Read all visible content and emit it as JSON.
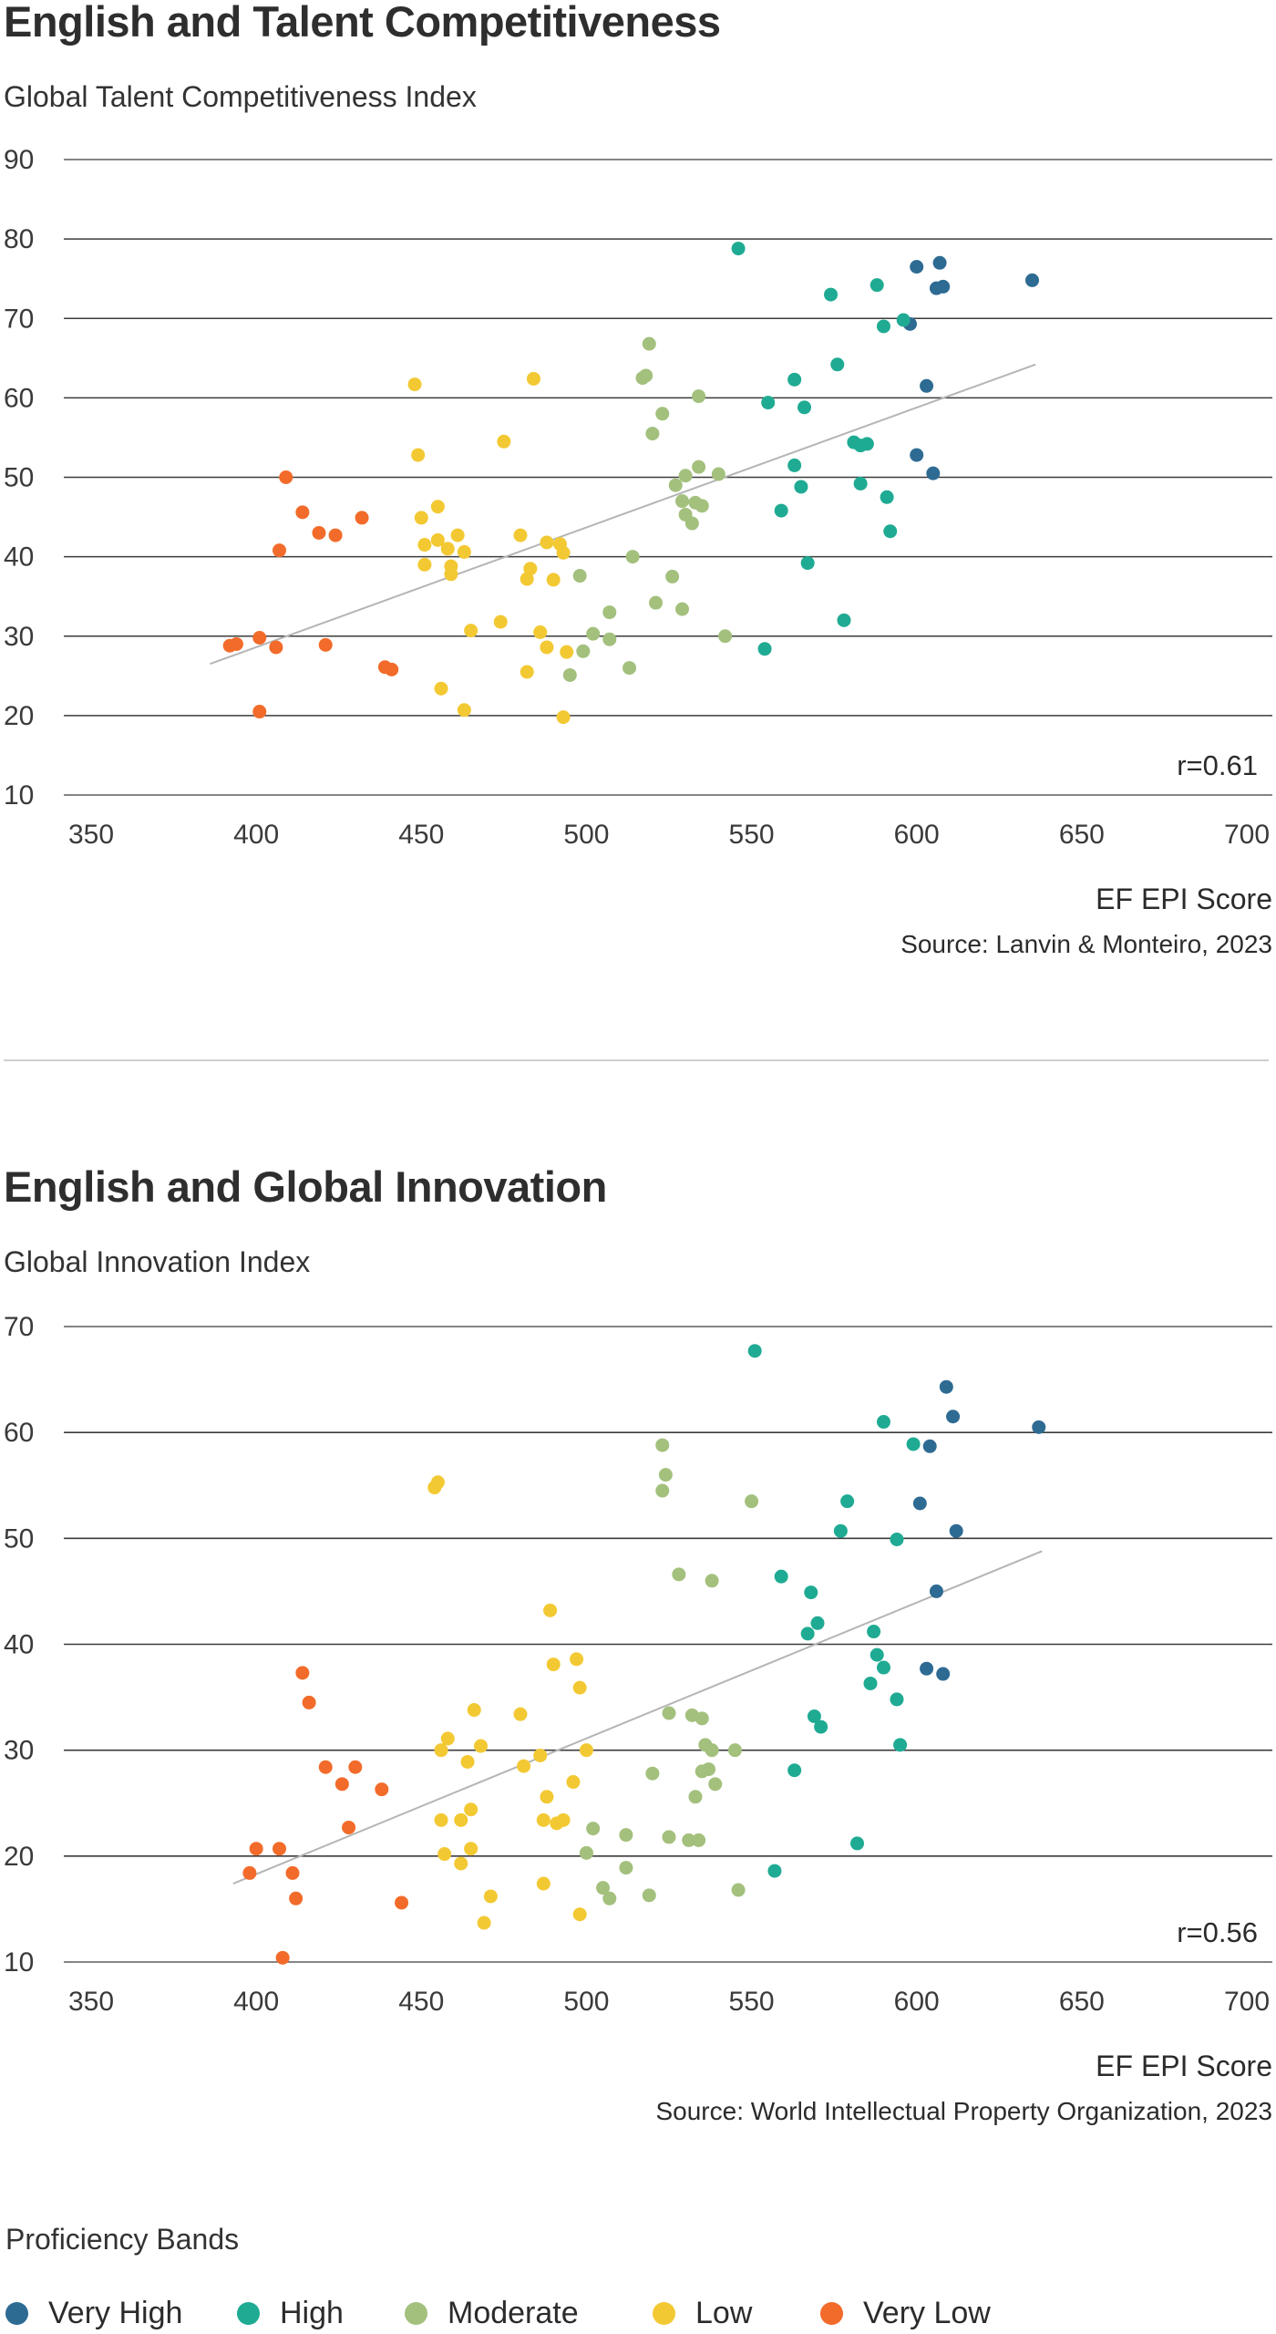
{
  "colors": {
    "Very High": "#2e6b93",
    "High": "#1fab93",
    "Moderate": "#a3c07d",
    "Low": "#f3c933",
    "Very Low": "#f26b2a",
    "grid": "#3c3c3c",
    "trend": "#b5b5b5"
  },
  "legend": {
    "title": "Proficiency Bands",
    "items": [
      {
        "label": "Very High",
        "color": "#2e6b93"
      },
      {
        "label": "High",
        "color": "#1fab93"
      },
      {
        "label": "Moderate",
        "color": "#a3c07d"
      },
      {
        "label": "Low",
        "color": "#f3c933"
      },
      {
        "label": "Very Low",
        "color": "#f26b2a"
      }
    ]
  },
  "chart_data": [
    {
      "type": "scatter",
      "title": "English and Talent Competitiveness",
      "ylabel": "Global Talent Competitiveness Index",
      "xlabel": "EF EPI Score",
      "source": "Source: Lanvin & Monteiro, 2023",
      "annotation": "r=0.61",
      "xlim": [
        350,
        700
      ],
      "ylim": [
        10,
        90
      ],
      "xticks": [
        350,
        400,
        450,
        500,
        550,
        600,
        650,
        700
      ],
      "yticks": [
        10,
        20,
        30,
        40,
        50,
        60,
        70,
        80,
        90
      ],
      "trendline": [
        [
          386,
          26.5
        ],
        [
          636,
          64.2
        ]
      ],
      "series": [
        {
          "name": "Very High",
          "points": [
            [
              600,
              76.5
            ],
            [
              607,
              77
            ],
            [
              606,
              73.8
            ],
            [
              608,
              74
            ],
            [
              598,
              69.3
            ],
            [
              635,
              74.8
            ],
            [
              603,
              61.5
            ],
            [
              600,
              52.8
            ],
            [
              605,
              50.5
            ]
          ]
        },
        {
          "name": "High",
          "points": [
            [
              546,
              78.8
            ],
            [
              574,
              73
            ],
            [
              588,
              74.2
            ],
            [
              596,
              69.8
            ],
            [
              590,
              69
            ],
            [
              576,
              64.2
            ],
            [
              563,
              62.3
            ],
            [
              555,
              59.4
            ],
            [
              566,
              58.8
            ],
            [
              581,
              54.4
            ],
            [
              583,
              54
            ],
            [
              585,
              54.2
            ],
            [
              563,
              51.5
            ],
            [
              565,
              48.8
            ],
            [
              583,
              49.2
            ],
            [
              591,
              47.5
            ],
            [
              559,
              45.8
            ],
            [
              592,
              43.2
            ],
            [
              567,
              39.2
            ],
            [
              578,
              32
            ],
            [
              554,
              28.4
            ]
          ]
        },
        {
          "name": "Moderate",
          "points": [
            [
              519,
              66.8
            ],
            [
              518,
              62.8
            ],
            [
              517,
              62.5
            ],
            [
              534,
              60.2
            ],
            [
              523,
              58
            ],
            [
              520,
              55.5
            ],
            [
              534,
              51.3
            ],
            [
              530,
              50.2
            ],
            [
              540,
              50.4
            ],
            [
              527,
              49
            ],
            [
              529,
              47
            ],
            [
              533,
              46.8
            ],
            [
              535,
              46.4
            ],
            [
              530,
              45.3
            ],
            [
              532,
              44.2
            ],
            [
              514,
              40
            ],
            [
              498,
              37.6
            ],
            [
              526,
              37.5
            ],
            [
              521,
              34.2
            ],
            [
              529,
              33.4
            ],
            [
              507,
              33
            ],
            [
              502,
              30.3
            ],
            [
              507,
              29.6
            ],
            [
              542,
              30
            ],
            [
              499,
              28.1
            ],
            [
              513,
              26
            ],
            [
              495,
              25.1
            ]
          ]
        },
        {
          "name": "Low",
          "points": [
            [
              448,
              61.7
            ],
            [
              484,
              62.4
            ],
            [
              449,
              52.8
            ],
            [
              475,
              54.5
            ],
            [
              450,
              44.9
            ],
            [
              455,
              46.3
            ],
            [
              455,
              42.1
            ],
            [
              461,
              42.7
            ],
            [
              451,
              41.5
            ],
            [
              458,
              41
            ],
            [
              463,
              40.6
            ],
            [
              459,
              38.8
            ],
            [
              451,
              39
            ],
            [
              459,
              37.8
            ],
            [
              480,
              42.7
            ],
            [
              483,
              38.5
            ],
            [
              482,
              37.2
            ],
            [
              488,
              41.8
            ],
            [
              492,
              41.6
            ],
            [
              493,
              40.5
            ],
            [
              490,
              37.1
            ],
            [
              474,
              31.8
            ],
            [
              465,
              30.7
            ],
            [
              486,
              30.5
            ],
            [
              488,
              28.6
            ],
            [
              494,
              28
            ],
            [
              456,
              23.4
            ],
            [
              482,
              25.5
            ],
            [
              463,
              20.7
            ],
            [
              493,
              19.8
            ]
          ]
        },
        {
          "name": "Very Low",
          "points": [
            [
              409,
              50
            ],
            [
              414,
              45.6
            ],
            [
              432,
              44.9
            ],
            [
              419,
              43
            ],
            [
              424,
              42.7
            ],
            [
              407,
              40.8
            ],
            [
              392,
              28.8
            ],
            [
              394,
              29
            ],
            [
              401,
              29.8
            ],
            [
              406,
              28.6
            ],
            [
              421,
              28.9
            ],
            [
              439,
              26.1
            ],
            [
              441,
              25.8
            ],
            [
              401,
              20.5
            ]
          ]
        }
      ]
    },
    {
      "type": "scatter",
      "title": "English and Global Innovation",
      "ylabel": "Global Innovation Index",
      "xlabel": "EF EPI Score",
      "source": "Source: World Intellectual Property Organization, 2023",
      "annotation": "r=0.56",
      "xlim": [
        350,
        700
      ],
      "ylim": [
        10,
        70
      ],
      "xticks": [
        350,
        400,
        450,
        500,
        550,
        600,
        650,
        700
      ],
      "yticks": [
        10,
        20,
        30,
        40,
        50,
        60,
        70
      ],
      "trendline": [
        [
          393,
          17.4
        ],
        [
          638,
          48.8
        ]
      ],
      "series": [
        {
          "name": "Very High",
          "points": [
            [
              609,
              64.3
            ],
            [
              611,
              61.5
            ],
            [
              604,
              58.7
            ],
            [
              637,
              60.5
            ],
            [
              601,
              53.3
            ],
            [
              612,
              50.7
            ],
            [
              606,
              45
            ],
            [
              603,
              37.7
            ],
            [
              608,
              37.2
            ]
          ]
        },
        {
          "name": "High",
          "points": [
            [
              551,
              67.7
            ],
            [
              590,
              61
            ],
            [
              599,
              58.9
            ],
            [
              579,
              53.5
            ],
            [
              577,
              50.7
            ],
            [
              594,
              49.9
            ],
            [
              559,
              46.4
            ],
            [
              568,
              44.9
            ],
            [
              570,
              42
            ],
            [
              567,
              41
            ],
            [
              587,
              41.2
            ],
            [
              588,
              39
            ],
            [
              590,
              37.8
            ],
            [
              586,
              36.3
            ],
            [
              594,
              34.8
            ],
            [
              569,
              33.2
            ],
            [
              571,
              32.2
            ],
            [
              595,
              30.5
            ],
            [
              563,
              28.1
            ],
            [
              582,
              21.2
            ],
            [
              557,
              18.6
            ]
          ]
        },
        {
          "name": "Moderate",
          "points": [
            [
              523,
              58.8
            ],
            [
              524,
              56
            ],
            [
              523,
              54.5
            ],
            [
              550,
              53.5
            ],
            [
              528,
              46.6
            ],
            [
              538,
              46
            ],
            [
              525,
              33.5
            ],
            [
              532,
              33.3
            ],
            [
              535,
              33
            ],
            [
              536,
              30.5
            ],
            [
              538,
              30
            ],
            [
              545,
              30
            ],
            [
              535,
              28
            ],
            [
              537,
              28.2
            ],
            [
              520,
              27.8
            ],
            [
              539,
              26.8
            ],
            [
              533,
              25.6
            ],
            [
              525,
              21.8
            ],
            [
              531,
              21.5
            ],
            [
              534,
              21.5
            ],
            [
              502,
              22.6
            ],
            [
              512,
              22
            ],
            [
              500,
              20.3
            ],
            [
              512,
              18.9
            ],
            [
              505,
              17
            ],
            [
              546,
              16.8
            ],
            [
              507,
              16
            ],
            [
              519,
              16.3
            ]
          ]
        },
        {
          "name": "Low",
          "points": [
            [
              454,
              54.8
            ],
            [
              455,
              55.3
            ],
            [
              489,
              43.2
            ],
            [
              490,
              38.1
            ],
            [
              497,
              38.6
            ],
            [
              498,
              35.9
            ],
            [
              466,
              33.8
            ],
            [
              480,
              33.4
            ],
            [
              458,
              31.1
            ],
            [
              468,
              30.4
            ],
            [
              456,
              30
            ],
            [
              464,
              28.9
            ],
            [
              486,
              29.5
            ],
            [
              481,
              28.5
            ],
            [
              500,
              30
            ],
            [
              496,
              27
            ],
            [
              488,
              25.6
            ],
            [
              465,
              24.4
            ],
            [
              456,
              23.4
            ],
            [
              462,
              23.4
            ],
            [
              487,
              23.4
            ],
            [
              491,
              23.1
            ],
            [
              493,
              23.4
            ],
            [
              465,
              20.7
            ],
            [
              457,
              20.2
            ],
            [
              462,
              19.3
            ],
            [
              471,
              16.2
            ],
            [
              487,
              17.4
            ],
            [
              498,
              14.5
            ],
            [
              469,
              13.7
            ]
          ]
        },
        {
          "name": "Very Low",
          "points": [
            [
              414,
              37.3
            ],
            [
              416,
              34.5
            ],
            [
              421,
              28.4
            ],
            [
              430,
              28.4
            ],
            [
              426,
              26.8
            ],
            [
              438,
              26.3
            ],
            [
              428,
              22.7
            ],
            [
              400,
              20.7
            ],
            [
              407,
              20.7
            ],
            [
              398,
              18.4
            ],
            [
              411,
              18.4
            ],
            [
              412,
              16
            ],
            [
              444,
              15.6
            ],
            [
              408,
              10.4
            ]
          ]
        }
      ]
    }
  ]
}
